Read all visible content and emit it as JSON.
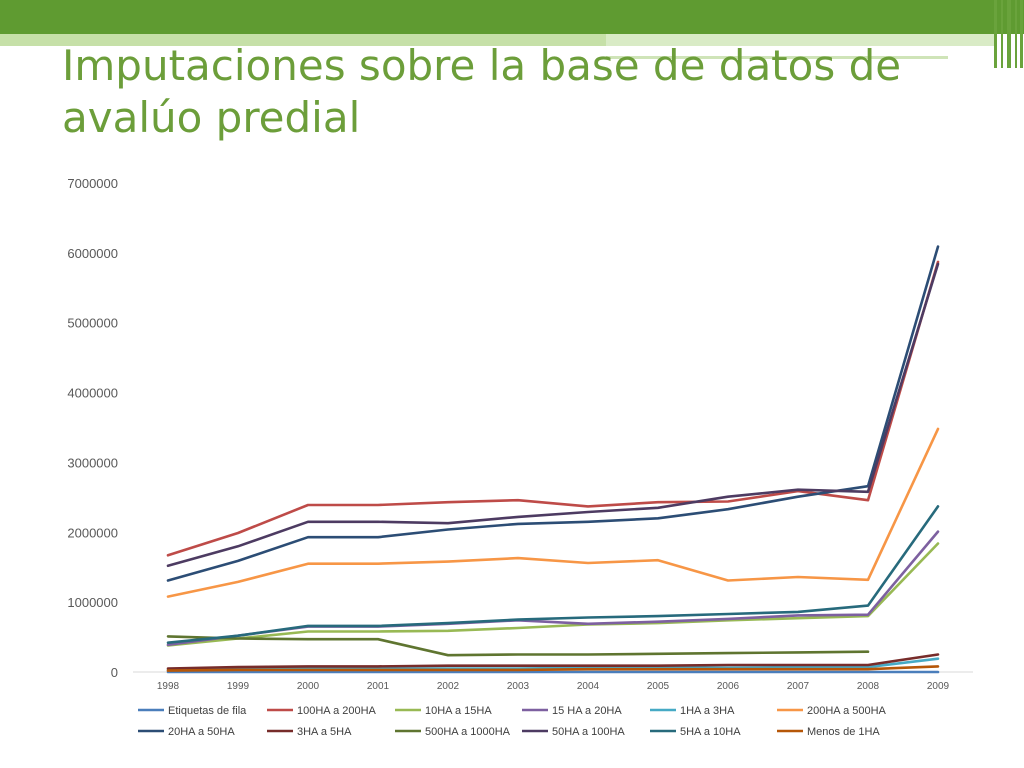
{
  "slide": {
    "title": "Imputaciones sobre la base de datos de avalúo predial"
  },
  "colors": {
    "header_green": "#5f9b31",
    "title_green": "#6c9e3a"
  },
  "chart_data": {
    "type": "line",
    "title": "",
    "xlabel": "",
    "ylabel": "",
    "ylim": [
      0,
      7000000
    ],
    "yticks": [
      0,
      1000000,
      2000000,
      3000000,
      4000000,
      5000000,
      6000000,
      7000000
    ],
    "ytick_labels": [
      "0",
      "1000000",
      "2000000",
      "3000000",
      "4000000",
      "5000000",
      "6000000",
      "7000000"
    ],
    "x": [
      "1998",
      "1999",
      "2000",
      "2001",
      "2002",
      "2003",
      "2004",
      "2005",
      "2006",
      "2007",
      "2008",
      "2009"
    ],
    "grid": false,
    "legend_position": "bottom",
    "series": [
      {
        "name": "Etiquetas de fila",
        "color": "#4a7ebb",
        "values": [
          0,
          0,
          0,
          0,
          0,
          0,
          0,
          0,
          0,
          0,
          0,
          0
        ]
      },
      {
        "name": "100HA a 200HA",
        "color": "#be4b48",
        "values": [
          1670000,
          1990000,
          2390000,
          2390000,
          2430000,
          2460000,
          2370000,
          2430000,
          2440000,
          2590000,
          2460000,
          5870000
        ]
      },
      {
        "name": "10HA a 15HA",
        "color": "#98b954",
        "values": [
          380000,
          480000,
          580000,
          580000,
          590000,
          630000,
          680000,
          700000,
          740000,
          770000,
          800000,
          1840000
        ]
      },
      {
        "name": "15 HA a 20HA",
        "color": "#7d60a0",
        "values": [
          390000,
          520000,
          650000,
          650000,
          690000,
          740000,
          690000,
          720000,
          760000,
          810000,
          820000,
          2010000
        ]
      },
      {
        "name": "1HA a 3HA",
        "color": "#46aac5",
        "values": [
          30000,
          40000,
          50000,
          50000,
          50000,
          50000,
          60000,
          60000,
          60000,
          70000,
          70000,
          190000
        ]
      },
      {
        "name": "200HA a 500HA",
        "color": "#f79646",
        "values": [
          1080000,
          1290000,
          1550000,
          1550000,
          1580000,
          1630000,
          1560000,
          1600000,
          1310000,
          1360000,
          1320000,
          3480000
        ]
      },
      {
        "name": "20HA a 50HA",
        "color": "#2c4d75",
        "values": [
          1310000,
          1590000,
          1930000,
          1930000,
          2040000,
          2120000,
          2150000,
          2200000,
          2330000,
          2510000,
          2660000,
          6090000
        ]
      },
      {
        "name": "3HA a 5HA",
        "color": "#772c2a",
        "values": [
          50000,
          70000,
          80000,
          80000,
          90000,
          90000,
          90000,
          90000,
          100000,
          100000,
          100000,
          250000
        ]
      },
      {
        "name": "500HA a 1000HA",
        "color": "#5f7530",
        "values": [
          510000,
          480000,
          470000,
          470000,
          240000,
          250000,
          250000,
          260000,
          270000,
          280000,
          290000,
          null
        ]
      },
      {
        "name": "50HA a 100HA",
        "color": "#4d3b62",
        "values": [
          1520000,
          1800000,
          2150000,
          2150000,
          2130000,
          2220000,
          2290000,
          2350000,
          2510000,
          2610000,
          2580000,
          5840000
        ]
      },
      {
        "name": "5HA a 10HA",
        "color": "#276a7c",
        "values": [
          420000,
          520000,
          660000,
          660000,
          700000,
          750000,
          780000,
          800000,
          830000,
          860000,
          950000,
          2370000
        ]
      },
      {
        "name": "Menos de 1HA",
        "color": "#b65708",
        "values": [
          20000,
          30000,
          30000,
          30000,
          30000,
          30000,
          40000,
          40000,
          40000,
          40000,
          40000,
          80000
        ]
      }
    ]
  }
}
